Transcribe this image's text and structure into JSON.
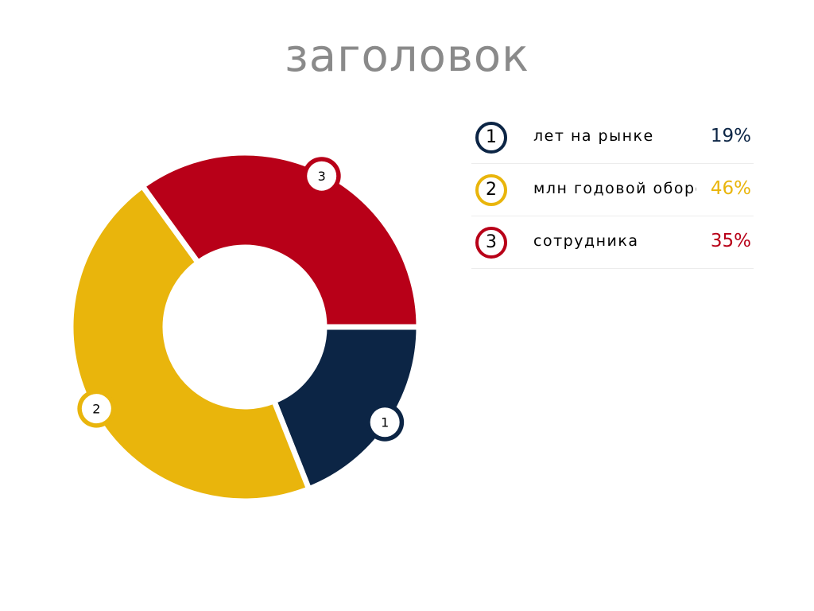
{
  "chart_data": {
    "type": "pie",
    "title": "заголовок",
    "donut": true,
    "start_angle_deg": 0,
    "direction": "clockwise",
    "slices": [
      {
        "id": "1",
        "label": "лет на рынке",
        "value": 19,
        "value_label": "19%",
        "color": "#0c2545"
      },
      {
        "id": "2",
        "label": "млн годовой оборот",
        "value": 46,
        "value_label": "46%",
        "color": "#e9b50c"
      },
      {
        "id": "3",
        "label": "сотрудника",
        "value": 35,
        "value_label": "35%",
        "color": "#b80018"
      }
    ],
    "legend_placement": "right"
  }
}
